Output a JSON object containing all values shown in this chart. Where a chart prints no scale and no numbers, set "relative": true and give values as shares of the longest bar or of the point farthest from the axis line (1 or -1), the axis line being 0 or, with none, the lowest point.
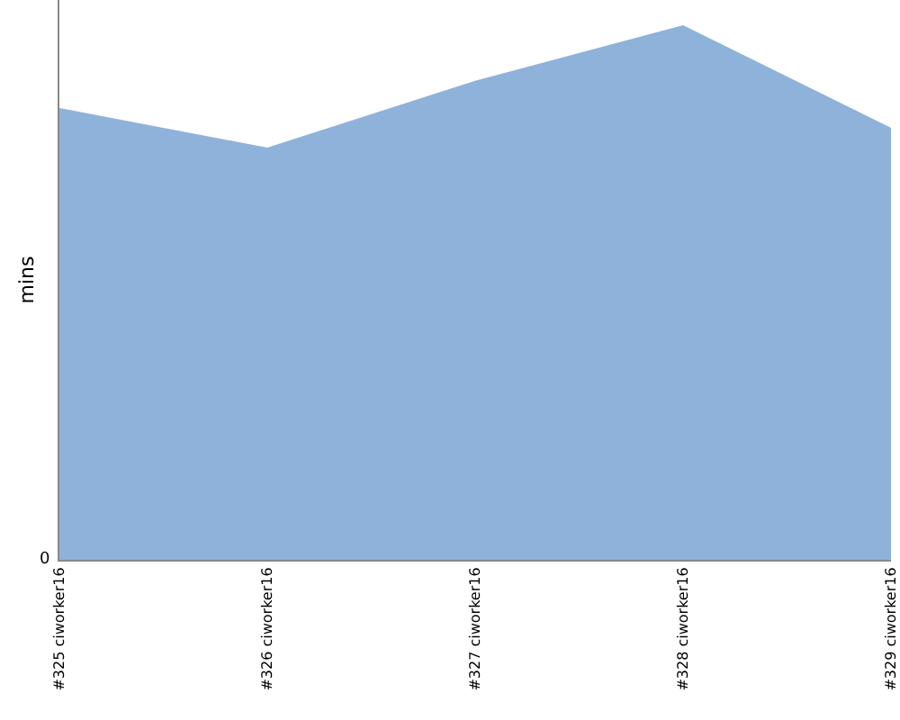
{
  "chart_data": {
    "type": "area",
    "ylabel": "mins",
    "relative": true,
    "annotations": [
      "0"
    ],
    "categories": [
      "#325 ciworker16",
      "#326 ciworker16",
      "#327 ciworker16",
      "#328 ciworker16",
      "#329 ciworker16"
    ],
    "series": [
      {
        "color": "#8fb2da",
        "values": [
          0.845,
          0.771,
          0.896,
          1,
          0.808
        ]
      }
    ]
  }
}
